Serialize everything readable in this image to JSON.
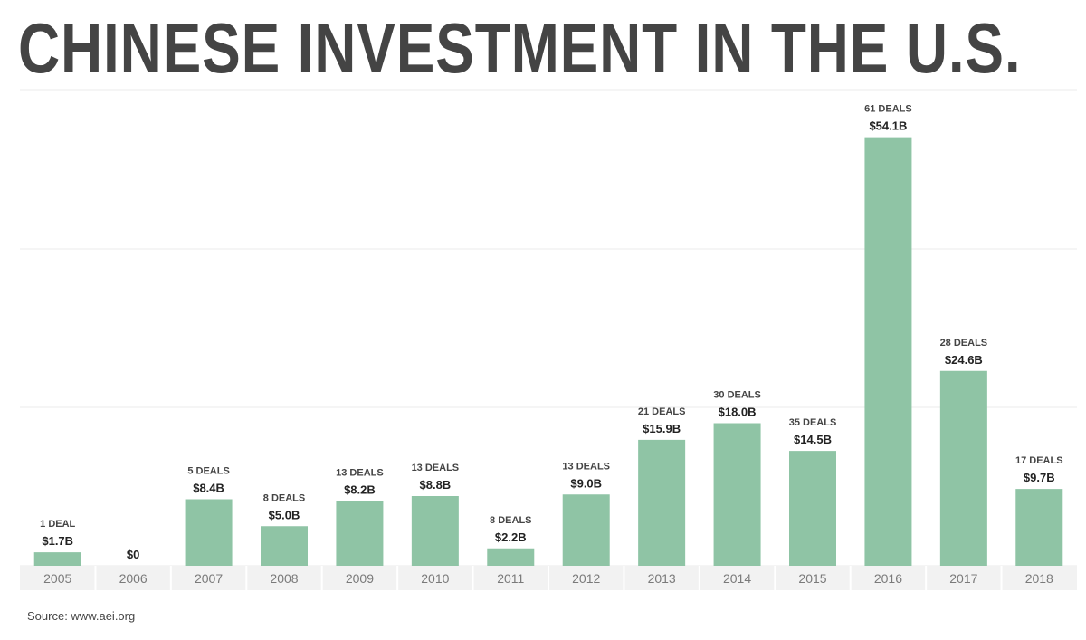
{
  "title": "CHINESE INVESTMENT IN THE U.S.",
  "source": "Source: www.aei.org",
  "colors": {
    "bar": "#8fc4a5",
    "text": "#444444",
    "year_text": "#7a7a7a",
    "grid": "#ebebeb",
    "band": "#f2f2f2"
  },
  "chart_data": {
    "type": "bar",
    "title": "CHINESE INVESTMENT IN THE U.S.",
    "categories": [
      "2005",
      "2006",
      "2007",
      "2008",
      "2009",
      "2010",
      "2011",
      "2012",
      "2013",
      "2014",
      "2015",
      "2016",
      "2017",
      "2018"
    ],
    "values": [
      1.7,
      0,
      8.4,
      5.0,
      8.2,
      8.8,
      2.2,
      9.0,
      15.9,
      18.0,
      14.5,
      54.1,
      24.6,
      9.7
    ],
    "value_labels": [
      "$1.7B",
      "$0",
      "$8.4B",
      "$5.0B",
      "$8.2B",
      "$8.8B",
      "$2.2B",
      "$9.0B",
      "$15.9B",
      "$18.0B",
      "$14.5B",
      "$54.1B",
      "$24.6B",
      "$9.7B"
    ],
    "deal_labels": [
      "1 DEAL",
      "",
      "5 DEALS",
      "8 DEALS",
      "13 DEALS",
      "13 DEALS",
      "8 DEALS",
      "13 DEALS",
      "21 DEALS",
      "30 DEALS",
      "35 DEALS",
      "61 DEALS",
      "28 DEALS",
      "17 DEALS"
    ],
    "unit": "billions of USD",
    "ylim": [
      0,
      60
    ],
    "grid": true,
    "legend": "none"
  }
}
